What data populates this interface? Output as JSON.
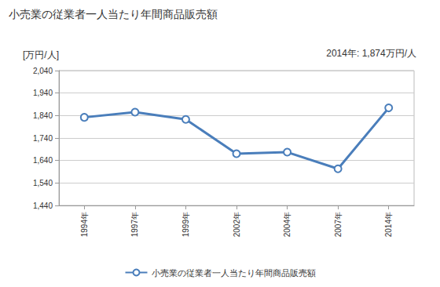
{
  "chart_data": {
    "type": "line",
    "title": "小売業の従業者一人当たり年間商品販売額",
    "y_label": "[万円/人]",
    "annotation": "2014年: 1,874万円/人",
    "categories": [
      "1994年",
      "1997年",
      "1999年",
      "2002年",
      "2004年",
      "2007年",
      "2014年"
    ],
    "series": [
      {
        "name": "小売業の従業者一人当たり年間商品販売額",
        "color": "#4a7ebb",
        "values": [
          1832,
          1855,
          1823,
          1670,
          1677,
          1603,
          1874
        ],
        "marker": "circle"
      }
    ],
    "ylim": [
      1440,
      2040
    ],
    "yticks": [
      {
        "value": 1440,
        "label": "1,440"
      },
      {
        "value": 1540,
        "label": "1,540"
      },
      {
        "value": 1640,
        "label": "1,640"
      },
      {
        "value": 1740,
        "label": "1,740"
      },
      {
        "value": 1840,
        "label": "1,840"
      },
      {
        "value": 1940,
        "label": "1,940"
      },
      {
        "value": 2040,
        "label": "2,040"
      }
    ],
    "grid": true,
    "legend": "bottom"
  }
}
